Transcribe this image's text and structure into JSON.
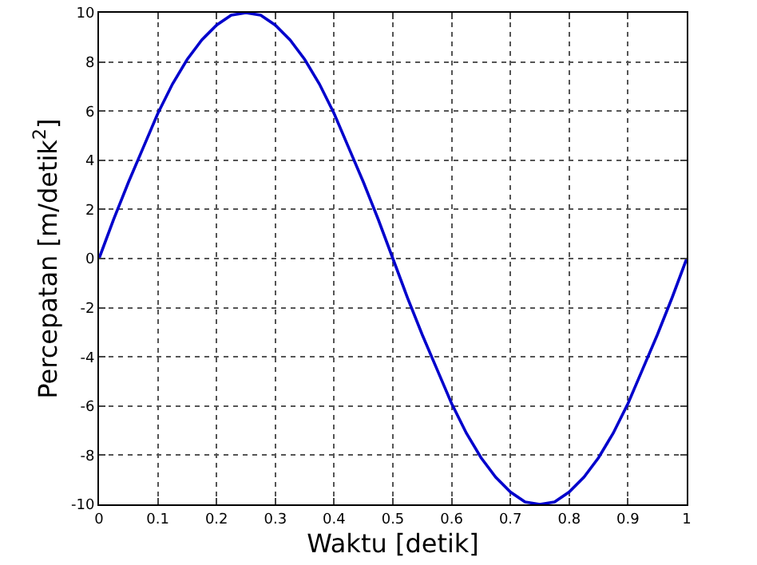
{
  "chart_data": {
    "type": "line",
    "xlabel": "Waktu [detik]",
    "ylabel": "Percepatan [m/detik$^{2}$]",
    "x": [
      0,
      0.025,
      0.05,
      0.075,
      0.1,
      0.125,
      0.15,
      0.175,
      0.2,
      0.225,
      0.25,
      0.275,
      0.3,
      0.325,
      0.35,
      0.375,
      0.4,
      0.425,
      0.45,
      0.475,
      0.5,
      0.525,
      0.55,
      0.575,
      0.6,
      0.625,
      0.65,
      0.675,
      0.7,
      0.725,
      0.75,
      0.775,
      0.8,
      0.825,
      0.85,
      0.875,
      0.9,
      0.925,
      0.95,
      0.975,
      1
    ],
    "series": [
      {
        "color": "#0000cc",
        "values": [
          0,
          1.6,
          3.1,
          4.5,
          5.9,
          7.1,
          8.1,
          8.9,
          9.5,
          9.9,
          10,
          9.9,
          9.5,
          8.9,
          8.1,
          7.1,
          5.9,
          4.5,
          3.1,
          1.6,
          0,
          -1.6,
          -3.1,
          -4.5,
          -5.9,
          -7.1,
          -8.1,
          -8.9,
          -9.5,
          -9.9,
          -10,
          -9.9,
          -9.5,
          -8.9,
          -8.1,
          -7.1,
          -5.9,
          -4.5,
          -3.1,
          -1.6,
          0
        ]
      }
    ],
    "xlim": [
      0,
      1
    ],
    "xticks": [
      0,
      0.1,
      0.2,
      0.3,
      0.4,
      0.5,
      0.6,
      0.7,
      0.8,
      0.9,
      1
    ],
    "ylim": [
      -10,
      10
    ],
    "yticks": [
      -10,
      -8,
      -6,
      -4,
      -2,
      0,
      2,
      4,
      6,
      8,
      10
    ],
    "grid": true,
    "legend": false,
    "marker": "none",
    "line_style": "solid"
  }
}
